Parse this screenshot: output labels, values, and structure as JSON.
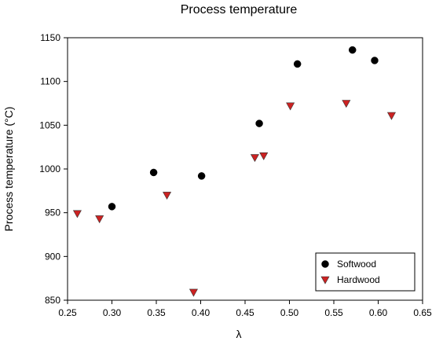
{
  "chart_data": {
    "type": "scatter",
    "title": "Process temperature",
    "xlabel": "λ",
    "ylabel": "Process temperature (°C)",
    "xlim": [
      0.25,
      0.65
    ],
    "ylim": [
      850,
      1150
    ],
    "xticks": [
      "0.25",
      "0.30",
      "0.35",
      "0.40",
      "0.45",
      "0.50",
      "0.55",
      "0.60",
      "0.65"
    ],
    "yticks": [
      "850",
      "900",
      "950",
      "1000",
      "1050",
      "1100",
      "1150"
    ],
    "grid": false,
    "legend_position": "bottom-right",
    "series": [
      {
        "name": "Softwood",
        "marker": "circle",
        "color": "#000000",
        "points": [
          {
            "x": 0.3,
            "y": 957
          },
          {
            "x": 0.347,
            "y": 996
          },
          {
            "x": 0.401,
            "y": 992
          },
          {
            "x": 0.466,
            "y": 1052
          },
          {
            "x": 0.509,
            "y": 1120
          },
          {
            "x": 0.571,
            "y": 1136
          },
          {
            "x": 0.596,
            "y": 1124
          }
        ]
      },
      {
        "name": "Hardwood",
        "marker": "triangle-down",
        "color": "#cc2222",
        "points": [
          {
            "x": 0.261,
            "y": 949
          },
          {
            "x": 0.286,
            "y": 943
          },
          {
            "x": 0.362,
            "y": 970
          },
          {
            "x": 0.392,
            "y": 859
          },
          {
            "x": 0.461,
            "y": 1013
          },
          {
            "x": 0.471,
            "y": 1015
          },
          {
            "x": 0.501,
            "y": 1072
          },
          {
            "x": 0.564,
            "y": 1075
          },
          {
            "x": 0.615,
            "y": 1061
          }
        ]
      }
    ]
  }
}
